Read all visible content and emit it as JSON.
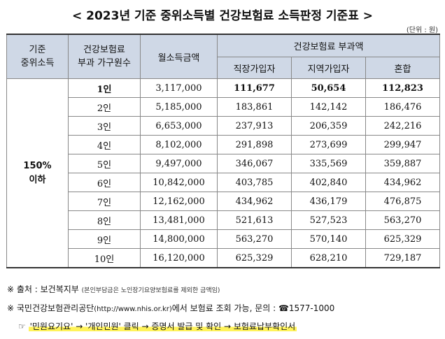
{
  "title": "< 2023년 기준 중위소득별 건강보험료 소득판정 기준표 >",
  "unit": "(단위 : 원)",
  "table": {
    "headers": {
      "median": "기준\n중위소득",
      "household": "건강보험료\n부과 가구원수",
      "income": "월소득금액",
      "premium_group": "건강보험료 부과액",
      "employee": "직장가입자",
      "regional": "지역가입자",
      "mixed": "혼합"
    },
    "group_label": "150%\n이하",
    "rows": [
      {
        "members": "1인",
        "income": "3,117,000",
        "employee": "111,677",
        "regional": "50,654",
        "mixed": "112,823"
      },
      {
        "members": "2인",
        "income": "5,185,000",
        "employee": "183,861",
        "regional": "142,142",
        "mixed": "186,476"
      },
      {
        "members": "3인",
        "income": "6,653,000",
        "employee": "237,913",
        "regional": "206,359",
        "mixed": "242,216"
      },
      {
        "members": "4인",
        "income": "8,102,000",
        "employee": "291,898",
        "regional": "273,699",
        "mixed": "299,947"
      },
      {
        "members": "5인",
        "income": "9,497,000",
        "employee": "346,067",
        "regional": "335,569",
        "mixed": "359,887"
      },
      {
        "members": "6인",
        "income": "10,842,000",
        "employee": "403,785",
        "regional": "402,840",
        "mixed": "434,962"
      },
      {
        "members": "7인",
        "income": "12,162,000",
        "employee": "434,962",
        "regional": "436,179",
        "mixed": "476,875"
      },
      {
        "members": "8인",
        "income": "13,481,000",
        "employee": "521,613",
        "regional": "527,523",
        "mixed": "563,270"
      },
      {
        "members": "9인",
        "income": "14,800,000",
        "employee": "563,270",
        "regional": "570,140",
        "mixed": "625,329"
      },
      {
        "members": "10인",
        "income": "16,120,000",
        "employee": "625,329",
        "regional": "628,210",
        "mixed": "729,187"
      }
    ]
  },
  "notes": {
    "source_prefix": "※ 출처 : 보건복지부",
    "source_small": "(본인부담금은 노인장기요양보험료를 제외한 금액임)",
    "inquiry_prefix": "※ 국민건강보험관리공단",
    "inquiry_url": "(http://www.nhis.or.kr)",
    "inquiry_suffix": "에서 보험료 조회 가능, 문의 : ☎1577-1000",
    "path_prefix": "☞ ",
    "path": "'민원요기요' → '개인민원' 클릭 → 증명서 발급 및 확인 → 보험료납부확인서"
  }
}
